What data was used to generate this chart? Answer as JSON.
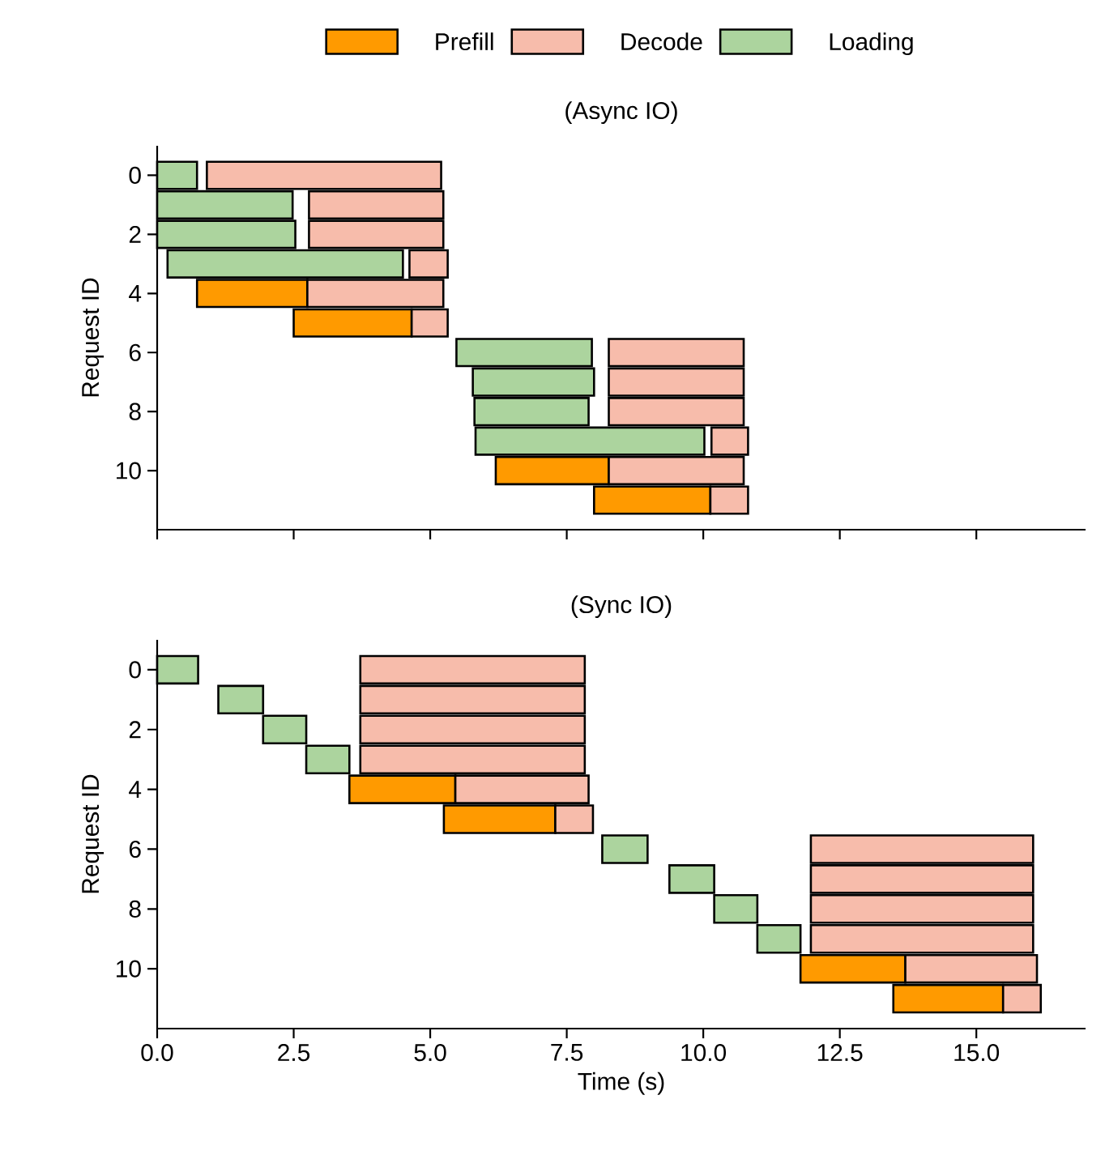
{
  "chart_data": [
    {
      "type": "bar",
      "orientation": "horizontal",
      "title": "(Async IO)",
      "ylabel": "Request ID",
      "legend": "top",
      "tick_labels": "y",
      "categories": [
        "0",
        null,
        "2",
        null,
        "4",
        null,
        "6",
        null,
        "8",
        null,
        "10",
        null
      ],
      "xlim": [
        0,
        17
      ],
      "xticks": [
        {
          "value": 0,
          "label": null
        },
        {
          "value": 2.5,
          "label": null
        },
        {
          "value": 5,
          "label": null
        },
        {
          "value": 7.5,
          "label": null
        },
        {
          "value": 10,
          "label": null
        },
        {
          "value": 12.5,
          "label": null
        },
        {
          "value": 15,
          "label": null
        }
      ],
      "series": [
        {
          "name": "Prefill",
          "color": "#ff9a00",
          "base": [
            null,
            null,
            null,
            null,
            0.73,
            2.5,
            null,
            null,
            null,
            null,
            6.2,
            8.0
          ],
          "values": [
            null,
            null,
            null,
            null,
            2.02,
            2.16,
            null,
            null,
            null,
            null,
            2.07,
            2.13
          ]
        },
        {
          "name": "Decode",
          "color": "#f7bcab",
          "base": [
            0.91,
            2.78,
            2.78,
            4.62,
            2.75,
            4.66,
            8.27,
            8.27,
            8.27,
            10.15,
            8.27,
            10.13
          ],
          "values": [
            4.29,
            2.46,
            2.46,
            0.7,
            2.49,
            0.66,
            2.47,
            2.47,
            2.47,
            0.67,
            2.47,
            0.69
          ]
        },
        {
          "name": "Loading",
          "color": "#acd49e",
          "base": [
            0,
            0,
            0,
            0.19,
            null,
            null,
            5.48,
            5.78,
            5.81,
            5.83,
            null,
            null
          ],
          "values": [
            0.73,
            2.48,
            2.53,
            4.31,
            null,
            null,
            2.48,
            2.22,
            2.09,
            4.19,
            null,
            null
          ]
        }
      ]
    },
    {
      "type": "bar",
      "orientation": "horizontal",
      "title": "(Sync IO)",
      "ylabel": "Request ID",
      "xlabel": "Time (s)",
      "categories": [
        "0",
        null,
        "2",
        null,
        "4",
        null,
        "6",
        null,
        "8",
        null,
        "10",
        null
      ],
      "xlim": [
        0,
        17
      ],
      "xticks": [
        {
          "value": 0,
          "label": "0.0"
        },
        {
          "value": 2.5,
          "label": "2.5"
        },
        {
          "value": 5,
          "label": "5.0"
        },
        {
          "value": 7.5,
          "label": "7.5"
        },
        {
          "value": 10,
          "label": "10.0"
        },
        {
          "value": 12.5,
          "label": "12.5"
        },
        {
          "value": 15,
          "label": "15.0"
        }
      ],
      "series": [
        {
          "color": "#ff9a00",
          "base": [
            null,
            null,
            null,
            null,
            3.52,
            5.25,
            null,
            null,
            null,
            null,
            11.78,
            13.48
          ],
          "values": [
            null,
            null,
            null,
            null,
            1.94,
            2.04,
            null,
            null,
            null,
            null,
            1.92,
            2.01
          ]
        },
        {
          "color": "#f7bcab",
          "base": [
            3.72,
            3.72,
            3.72,
            3.72,
            5.46,
            7.29,
            11.97,
            11.97,
            11.97,
            11.97,
            13.7,
            15.49
          ],
          "values": [
            4.11,
            4.11,
            4.11,
            4.11,
            2.44,
            0.69,
            4.07,
            4.07,
            4.07,
            4.07,
            2.41,
            0.69
          ]
        },
        {
          "color": "#acd49e",
          "base": [
            0,
            1.12,
            1.94,
            2.73,
            null,
            null,
            8.15,
            9.38,
            10.2,
            10.99,
            null,
            null
          ],
          "values": [
            0.75,
            0.82,
            0.79,
            0.79,
            null,
            null,
            0.83,
            0.82,
            0.79,
            0.79,
            null,
            null
          ]
        }
      ]
    }
  ]
}
